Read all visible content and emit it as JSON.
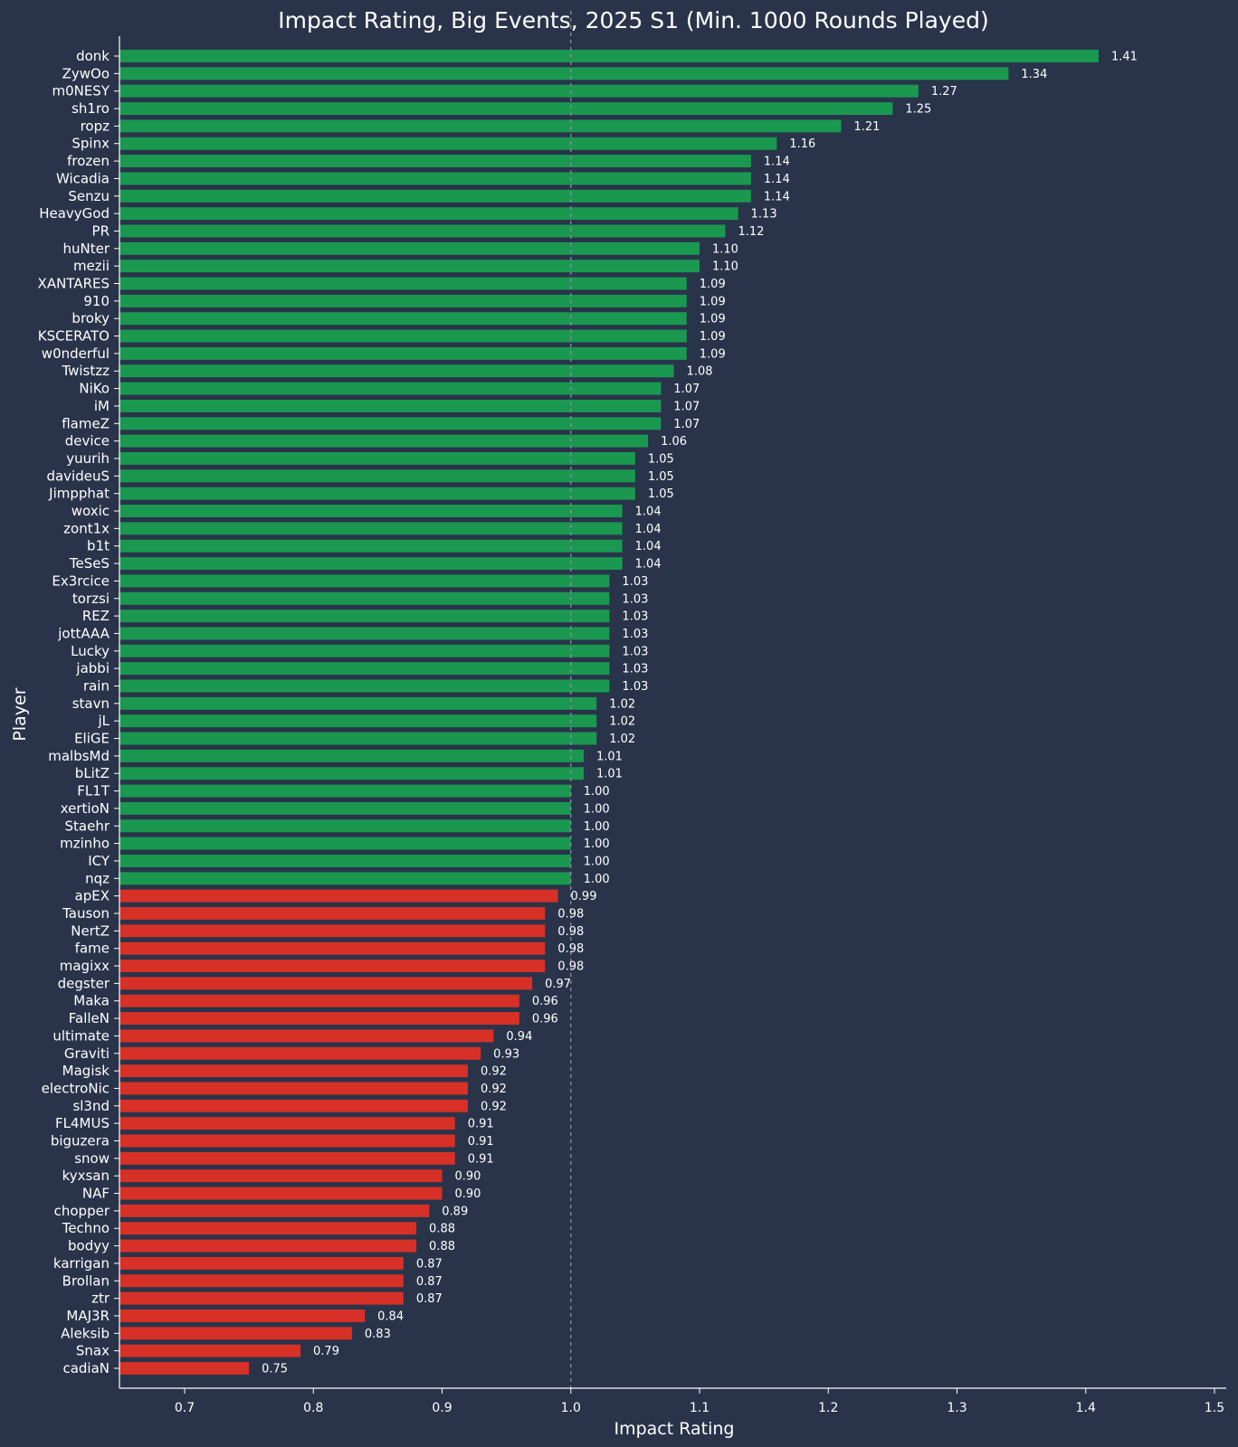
{
  "chart_data": {
    "type": "bar",
    "orientation": "horizontal",
    "title": "Impact Rating, Big Events, 2025 S1 (Min. 1000 Rounds Played)",
    "xlabel": "Impact Rating",
    "ylabel": "Player",
    "xlim": [
      0.65,
      1.51
    ],
    "xticks": [
      "0.7",
      "0.8",
      "0.9",
      "1.0",
      "1.1",
      "1.2",
      "1.3",
      "1.4",
      "1.5"
    ],
    "reference_line": 1.0,
    "colors": {
      "above": "#1a9850",
      "below": "#d73027",
      "background": "#29344a",
      "reference": "#8a93a3"
    },
    "grid": false,
    "categories": [
      "donk",
      "ZywOo",
      "m0NESY",
      "sh1ro",
      "ropz",
      "Spinx",
      "frozen",
      "Wicadia",
      "Senzu",
      "HeavyGod",
      "PR",
      "huNter",
      "mezii",
      "XANTARES",
      "910",
      "broky",
      "KSCERATO",
      "w0nderful",
      "Twistzz",
      "NiKo",
      "iM",
      "flameZ",
      "device",
      "yuurih",
      "davideuS",
      "Jimpphat",
      "woxic",
      "zont1x",
      "b1t",
      "TeSeS",
      "Ex3rcice",
      "torzsi",
      "REZ",
      "jottAAA",
      "Lucky",
      "jabbi",
      "rain",
      "stavn",
      "jL",
      "EliGE",
      "malbsMd",
      "bLitZ",
      "FL1T",
      "xertioN",
      "Staehr",
      "mzinho",
      "ICY",
      "nqz",
      "apEX",
      "Tauson",
      "NertZ",
      "fame",
      "magixx",
      "degster",
      "Maka",
      "FalleN",
      "ultimate",
      "Graviti",
      "Magisk",
      "electroNic",
      "sl3nd",
      "FL4MUS",
      "biguzera",
      "snow",
      "kyxsan",
      "NAF",
      "chopper",
      "Techno",
      "bodyy",
      "karrigan",
      "Brollan",
      "ztr",
      "MAJ3R",
      "Aleksib",
      "Snax",
      "cadiaN"
    ],
    "values": [
      1.41,
      1.34,
      1.27,
      1.25,
      1.21,
      1.16,
      1.14,
      1.14,
      1.14,
      1.13,
      1.12,
      1.1,
      1.1,
      1.09,
      1.09,
      1.09,
      1.09,
      1.09,
      1.08,
      1.07,
      1.07,
      1.07,
      1.06,
      1.05,
      1.05,
      1.05,
      1.04,
      1.04,
      1.04,
      1.04,
      1.03,
      1.03,
      1.03,
      1.03,
      1.03,
      1.03,
      1.03,
      1.02,
      1.02,
      1.02,
      1.01,
      1.01,
      1.0,
      1.0,
      1.0,
      1.0,
      1.0,
      1.0,
      0.99,
      0.98,
      0.98,
      0.98,
      0.98,
      0.97,
      0.96,
      0.96,
      0.94,
      0.93,
      0.92,
      0.92,
      0.92,
      0.91,
      0.91,
      0.91,
      0.9,
      0.9,
      0.89,
      0.88,
      0.88,
      0.87,
      0.87,
      0.87,
      0.84,
      0.83,
      0.79,
      0.75
    ],
    "labels": [
      "1.41",
      "1.34",
      "1.27",
      "1.25",
      "1.21",
      "1.16",
      "1.14",
      "1.14",
      "1.14",
      "1.13",
      "1.12",
      "1.10",
      "1.10",
      "1.09",
      "1.09",
      "1.09",
      "1.09",
      "1.09",
      "1.08",
      "1.07",
      "1.07",
      "1.07",
      "1.06",
      "1.05",
      "1.05",
      "1.05",
      "1.04",
      "1.04",
      "1.04",
      "1.04",
      "1.03",
      "1.03",
      "1.03",
      "1.03",
      "1.03",
      "1.03",
      "1.03",
      "1.02",
      "1.02",
      "1.02",
      "1.01",
      "1.01",
      "1.00",
      "1.00",
      "1.00",
      "1.00",
      "1.00",
      "1.00",
      "0.99",
      "0.98",
      "0.98",
      "0.98",
      "0.98",
      "0.97",
      "0.96",
      "0.96",
      "0.94",
      "0.93",
      "0.92",
      "0.92",
      "0.92",
      "0.91",
      "0.91",
      "0.91",
      "0.90",
      "0.90",
      "0.89",
      "0.88",
      "0.88",
      "0.87",
      "0.87",
      "0.87",
      "0.84",
      "0.83",
      "0.79",
      "0.75"
    ]
  }
}
